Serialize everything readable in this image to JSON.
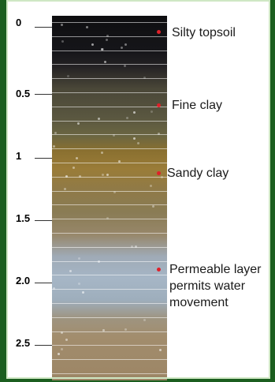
{
  "depth_ticks": [
    "0",
    "0.5",
    "1",
    "1.5",
    "2.0",
    "2.5"
  ],
  "layers": [
    {
      "label": "Silty topsoil"
    },
    {
      "label": "Fine clay"
    },
    {
      "label": "Sandy clay"
    },
    {
      "label": "Permeable layer permits water movement",
      "lines": [
        "Permeable layer",
        "permits water",
        "movement"
      ]
    }
  ],
  "colors": {
    "frame": "#1b5e1f",
    "marker": "#e0202a"
  }
}
